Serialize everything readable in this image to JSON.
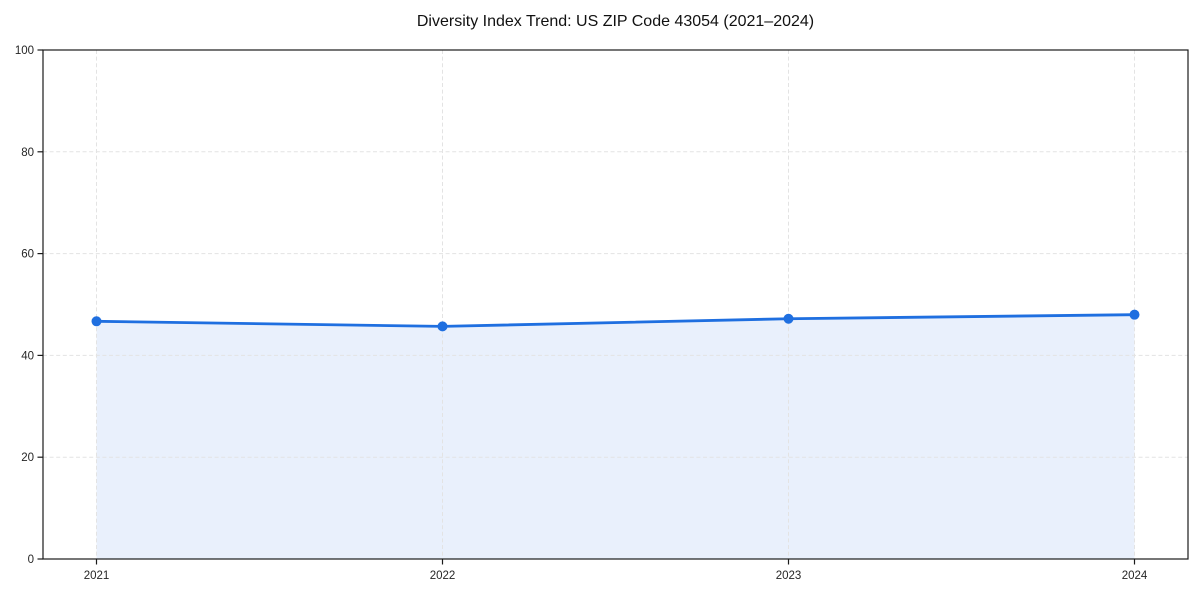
{
  "chart_data": {
    "type": "area",
    "title": "Diversity Index Trend: US ZIP Code 43054 (2021–2024)",
    "categories": [
      "2021",
      "2022",
      "2023",
      "2024"
    ],
    "series": [
      {
        "name": "Diversity Index",
        "values": [
          46.7,
          45.7,
          47.2,
          48.0
        ]
      }
    ],
    "xlabel": "",
    "ylabel": "",
    "ylim": [
      0,
      100
    ],
    "yticks": [
      0,
      20,
      40,
      60,
      80,
      100
    ],
    "grid": true,
    "legend": "none",
    "colors": {
      "line": "#1f6fe0",
      "marker": "#1f6fe0",
      "fill": "#e9f0fc",
      "grid": "#e3e3e3",
      "axis": "#1a1a1a",
      "tick_text": "#262626",
      "background": "#ffffff"
    }
  }
}
